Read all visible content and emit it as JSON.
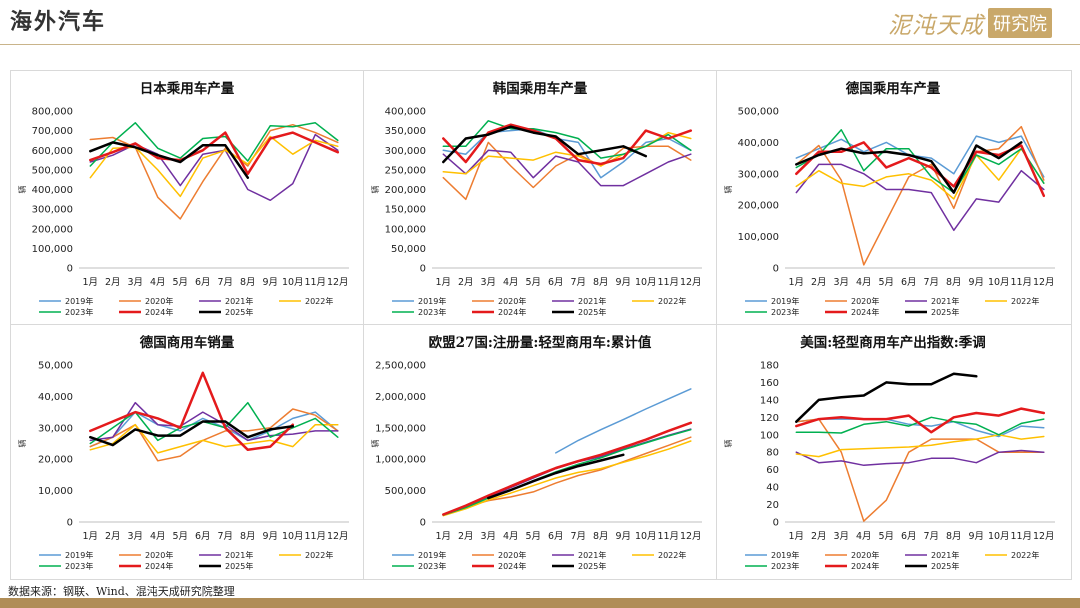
{
  "page": {
    "title": "海外汽车",
    "logo_text": "泥沌天成",
    "logo_badge": "研究院",
    "source": "数据来源：钢联、Wind、混沌天成研究院整理"
  },
  "chart_data": [
    {
      "type": "line",
      "title": "日本乘用车产量",
      "ylabel": "辆",
      "ylim": [
        0,
        800000
      ],
      "yticks": [
        0,
        100000,
        200000,
        300000,
        400000,
        500000,
        600000,
        700000,
        800000
      ],
      "yticklabels": [
        "0",
        "100,000",
        "200,000",
        "300,000",
        "400,000",
        "500,000",
        "600,000",
        "700,000",
        "800,000"
      ],
      "categories": [
        "1月",
        "2月",
        "3月",
        "4月",
        "5月",
        "6月",
        "7月",
        "8月",
        "9月",
        "10月",
        "11月",
        "12月"
      ],
      "series": [
        {
          "name": "2019年",
          "color": "#5b9bd5",
          "width": 1.5,
          "values": [
            null,
            null,
            null,
            null,
            null,
            null,
            null,
            null,
            null,
            null,
            null,
            null
          ]
        },
        {
          "name": "2020年",
          "color": "#ed7d31",
          "width": 1.5,
          "values": [
            655000,
            665000,
            615000,
            360000,
            250000,
            440000,
            610000,
            520000,
            700000,
            730000,
            690000,
            640000
          ]
        },
        {
          "name": "2021年",
          "color": "#7030a0",
          "width": 1.5,
          "values": [
            540000,
            575000,
            630000,
            580000,
            420000,
            580000,
            600000,
            400000,
            345000,
            430000,
            680000,
            600000
          ]
        },
        {
          "name": "2022年",
          "color": "#ffc000",
          "width": 1.5,
          "values": [
            460000,
            610000,
            615000,
            500000,
            365000,
            560000,
            600000,
            530000,
            670000,
            580000,
            650000,
            620000
          ]
        },
        {
          "name": "2023年",
          "color": "#00b050",
          "width": 1.5,
          "values": [
            520000,
            640000,
            740000,
            610000,
            560000,
            660000,
            670000,
            545000,
            725000,
            720000,
            740000,
            650000
          ]
        },
        {
          "name": "2024年",
          "color": "#e41a1c",
          "width": 2.5,
          "values": [
            550000,
            590000,
            635000,
            560000,
            550000,
            600000,
            690000,
            480000,
            660000,
            690000,
            640000,
            590000
          ]
        },
        {
          "name": "2025年",
          "color": "#000000",
          "width": 2.5,
          "values": [
            595000,
            640000,
            615000,
            575000,
            540000,
            625000,
            625000,
            460000,
            null,
            null,
            null,
            null
          ]
        }
      ]
    },
    {
      "type": "line",
      "title": "韩国乘用车产量",
      "ylabel": "辆",
      "ylim": [
        0,
        400000
      ],
      "yticks": [
        0,
        50000,
        100000,
        150000,
        200000,
        250000,
        300000,
        350000,
        400000
      ],
      "yticklabels": [
        "0",
        "50,000",
        "100,000",
        "150,000",
        "200,000",
        "250,000",
        "300,000",
        "350,000",
        "400,000"
      ],
      "categories": [
        "1月",
        "2月",
        "3月",
        "4月",
        "5月",
        "6月",
        "7月",
        "8月",
        "9月",
        "10月",
        "11月",
        "12月"
      ],
      "series": [
        {
          "name": "2019年",
          "color": "#5b9bd5",
          "width": 1.5,
          "values": [
            300000,
            290000,
            345000,
            350000,
            355000,
            330000,
            320000,
            230000,
            270000,
            320000,
            330000,
            300000
          ]
        },
        {
          "name": "2020年",
          "color": "#ed7d31",
          "width": 1.5,
          "values": [
            230000,
            175000,
            320000,
            260000,
            205000,
            260000,
            290000,
            260000,
            305000,
            310000,
            310000,
            275000
          ]
        },
        {
          "name": "2021年",
          "color": "#7030a0",
          "width": 1.5,
          "values": [
            290000,
            240000,
            300000,
            295000,
            230000,
            285000,
            270000,
            210000,
            210000,
            240000,
            270000,
            290000
          ]
        },
        {
          "name": "2022年",
          "color": "#ffc000",
          "width": 1.5,
          "values": [
            245000,
            240000,
            285000,
            280000,
            275000,
            295000,
            285000,
            260000,
            290000,
            310000,
            345000,
            330000
          ]
        },
        {
          "name": "2023年",
          "color": "#00b050",
          "width": 1.5,
          "values": [
            310000,
            310000,
            375000,
            355000,
            355000,
            345000,
            330000,
            280000,
            290000,
            310000,
            340000,
            300000
          ]
        },
        {
          "name": "2024年",
          "color": "#e41a1c",
          "width": 2.5,
          "values": [
            330000,
            270000,
            345000,
            365000,
            350000,
            330000,
            275000,
            265000,
            280000,
            350000,
            330000,
            350000
          ]
        },
        {
          "name": "2025年",
          "color": "#000000",
          "width": 2.5,
          "values": [
            270000,
            330000,
            340000,
            360000,
            345000,
            335000,
            290000,
            300000,
            310000,
            285000,
            null,
            null
          ]
        }
      ]
    },
    {
      "type": "line",
      "title": "德国乘用车产量",
      "ylabel": "辆",
      "ylim": [
        0,
        500000
      ],
      "yticks": [
        0,
        100000,
        200000,
        300000,
        400000,
        500000
      ],
      "yticklabels": [
        "0",
        "100,000",
        "200,000",
        "300,000",
        "400,000",
        "500,000"
      ],
      "categories": [
        "1月",
        "2月",
        "3月",
        "4月",
        "5月",
        "6月",
        "7月",
        "8月",
        "9月",
        "10月",
        "11月",
        "12月"
      ],
      "series": [
        {
          "name": "2019年",
          "color": "#5b9bd5",
          "width": 1.5,
          "values": [
            350000,
            380000,
            410000,
            370000,
            400000,
            360000,
            350000,
            300000,
            420000,
            400000,
            420000,
            290000
          ]
        },
        {
          "name": "2020年",
          "color": "#ed7d31",
          "width": 1.5,
          "values": [
            330000,
            390000,
            280000,
            10000,
            150000,
            290000,
            330000,
            190000,
            370000,
            380000,
            450000,
            280000
          ]
        },
        {
          "name": "2021年",
          "color": "#7030a0",
          "width": 1.5,
          "values": [
            240000,
            330000,
            330000,
            300000,
            250000,
            250000,
            240000,
            120000,
            220000,
            210000,
            310000,
            250000
          ]
        },
        {
          "name": "2022年",
          "color": "#ffc000",
          "width": 1.5,
          "values": [
            260000,
            310000,
            270000,
            260000,
            290000,
            300000,
            280000,
            220000,
            360000,
            280000,
            380000,
            270000
          ]
        },
        {
          "name": "2023年",
          "color": "#00b050",
          "width": 1.5,
          "values": [
            320000,
            360000,
            440000,
            310000,
            380000,
            380000,
            290000,
            240000,
            360000,
            330000,
            380000,
            270000
          ]
        },
        {
          "name": "2024年",
          "color": "#e41a1c",
          "width": 2.5,
          "values": [
            300000,
            370000,
            370000,
            400000,
            320000,
            350000,
            320000,
            260000,
            370000,
            360000,
            390000,
            230000
          ]
        },
        {
          "name": "2025年",
          "color": "#000000",
          "width": 2.5,
          "values": [
            330000,
            360000,
            380000,
            365000,
            370000,
            360000,
            340000,
            240000,
            390000,
            350000,
            400000,
            null
          ]
        }
      ]
    },
    {
      "type": "line",
      "title": "德国商用车销量",
      "ylabel": "辆",
      "ylim": [
        0,
        50000
      ],
      "yticks": [
        0,
        10000,
        20000,
        30000,
        40000,
        50000
      ],
      "yticklabels": [
        "0",
        "10,000",
        "20,000",
        "30,000",
        "40,000",
        "50,000"
      ],
      "categories": [
        "1月",
        "2月",
        "3月",
        "4月",
        "5月",
        "6月",
        "7月",
        "8月",
        "9月",
        "10月",
        "11月",
        "12月"
      ],
      "series": [
        {
          "name": "2019年",
          "color": "#5b9bd5",
          "width": 1.5,
          "values": [
            24000,
            27000,
            35000,
            31000,
            29000,
            33000,
            30000,
            26000,
            29000,
            33000,
            35000,
            29000
          ]
        },
        {
          "name": "2020年",
          "color": "#ed7d31",
          "width": 1.5,
          "values": [
            24000,
            27000,
            31000,
            19500,
            21000,
            26000,
            29000,
            29000,
            30000,
            36000,
            34000,
            29000
          ]
        },
        {
          "name": "2021年",
          "color": "#7030a0",
          "width": 1.5,
          "values": [
            26000,
            27000,
            38000,
            31000,
            30500,
            35000,
            31000,
            26000,
            27500,
            28000,
            29000,
            29000
          ]
        },
        {
          "name": "2022年",
          "color": "#ffc000",
          "width": 1.5,
          "values": [
            23000,
            25000,
            31000,
            22000,
            24000,
            26000,
            24000,
            25000,
            26000,
            24000,
            31000,
            31000
          ]
        },
        {
          "name": "2023年",
          "color": "#00b050",
          "width": 1.5,
          "values": [
            25000,
            30000,
            35000,
            26000,
            30000,
            32000,
            30000,
            38000,
            27000,
            30000,
            33000,
            27000
          ]
        },
        {
          "name": "2024年",
          "color": "#e41a1c",
          "width": 2.5,
          "values": [
            29000,
            32000,
            35000,
            33000,
            30000,
            47500,
            30000,
            23000,
            24000,
            31000,
            null,
            null
          ]
        },
        {
          "name": "2025年",
          "color": "#000000",
          "width": 2.5,
          "values": [
            27000,
            24500,
            29500,
            27500,
            27500,
            32000,
            32000,
            27000,
            29500,
            30500,
            null,
            null
          ]
        }
      ]
    },
    {
      "type": "line",
      "title": "欧盟27国:注册量:轻型商用车:累计值",
      "ylabel": "辆",
      "ylim": [
        0,
        2500000
      ],
      "yticks": [
        0,
        500000,
        1000000,
        1500000,
        2000000,
        2500000
      ],
      "yticklabels": [
        "0",
        "500,000",
        "1,000,000",
        "1,500,000",
        "2,000,000",
        "2,500,000"
      ],
      "categories": [
        "1月",
        "2月",
        "3月",
        "4月",
        "5月",
        "6月",
        "7月",
        "8月",
        "9月",
        "10月",
        "11月",
        "12月"
      ],
      "series": [
        {
          "name": "2019年",
          "color": "#5b9bd5",
          "width": 1.5,
          "values": [
            null,
            null,
            null,
            null,
            null,
            1100000,
            1300000,
            1470000,
            1630000,
            1800000,
            1960000,
            2120000
          ]
        },
        {
          "name": "2020年",
          "color": "#ed7d31",
          "width": 1.5,
          "values": [
            120000,
            240000,
            340000,
            400000,
            480000,
            620000,
            740000,
            830000,
            960000,
            1090000,
            1220000,
            1350000
          ]
        },
        {
          "name": "2021年",
          "color": "#7030a0",
          "width": 1.5,
          "values": [
            110000,
            230000,
            400000,
            550000,
            700000,
            850000,
            960000,
            1040000,
            1160000,
            1270000,
            1380000,
            1480000
          ]
        },
        {
          "name": "2022年",
          "color": "#ffc000",
          "width": 1.5,
          "values": [
            100000,
            210000,
            350000,
            460000,
            580000,
            700000,
            790000,
            850000,
            950000,
            1050000,
            1160000,
            1290000
          ]
        },
        {
          "name": "2023年",
          "color": "#00b050",
          "width": 1.5,
          "values": [
            110000,
            230000,
            380000,
            510000,
            660000,
            800000,
            920000,
            1020000,
            1150000,
            1260000,
            1370000,
            1470000
          ]
        },
        {
          "name": "2024年",
          "color": "#e41a1c",
          "width": 2.5,
          "values": [
            120000,
            260000,
            420000,
            570000,
            720000,
            860000,
            970000,
            1070000,
            1190000,
            1310000,
            1450000,
            1580000
          ]
        },
        {
          "name": "2025年",
          "color": "#000000",
          "width": 2.5,
          "values": [
            null,
            null,
            380000,
            510000,
            650000,
            780000,
            890000,
            980000,
            1070000,
            null,
            null,
            null
          ]
        }
      ]
    },
    {
      "type": "line",
      "title": "美国:轻型商用车产出指数:季调",
      "ylabel": "辆",
      "ylim": [
        0,
        180
      ],
      "yticks": [
        0,
        20,
        40,
        60,
        80,
        100,
        120,
        140,
        160,
        180
      ],
      "yticklabels": [
        "0",
        "20",
        "40",
        "60",
        "80",
        "100",
        "120",
        "140",
        "160",
        "180"
      ],
      "categories": [
        "1月",
        "2月",
        "3月",
        "4月",
        "5月",
        "6月",
        "7月",
        "8月",
        "9月",
        "10月",
        "11月",
        "12月"
      ],
      "series": [
        {
          "name": "2019年",
          "color": "#5b9bd5",
          "width": 1.5,
          "values": [
            115,
            118,
            118,
            118,
            118,
            112,
            110,
            115,
            105,
            98,
            110,
            108
          ]
        },
        {
          "name": "2020年",
          "color": "#ed7d31",
          "width": 1.5,
          "values": [
            115,
            118,
            80,
            1,
            25,
            80,
            95,
            95,
            95,
            80,
            80,
            80
          ]
        },
        {
          "name": "2021年",
          "color": "#7030a0",
          "width": 1.5,
          "values": [
            80,
            68,
            70,
            65,
            67,
            68,
            73,
            73,
            68,
            80,
            82,
            80
          ]
        },
        {
          "name": "2022年",
          "color": "#ffc000",
          "width": 1.5,
          "values": [
            78,
            75,
            83,
            84,
            85,
            86,
            88,
            92,
            95,
            100,
            95,
            98
          ]
        },
        {
          "name": "2023年",
          "color": "#00b050",
          "width": 1.5,
          "values": [
            103,
            103,
            102,
            112,
            115,
            110,
            120,
            115,
            112,
            100,
            113,
            118
          ]
        },
        {
          "name": "2024年",
          "color": "#e41a1c",
          "width": 2.5,
          "values": [
            110,
            118,
            120,
            118,
            118,
            122,
            103,
            120,
            125,
            122,
            130,
            125
          ]
        },
        {
          "name": "2025年",
          "color": "#000000",
          "width": 2.5,
          "values": [
            115,
            140,
            143,
            145,
            160,
            158,
            158,
            170,
            167,
            null,
            null,
            null
          ]
        }
      ]
    }
  ]
}
